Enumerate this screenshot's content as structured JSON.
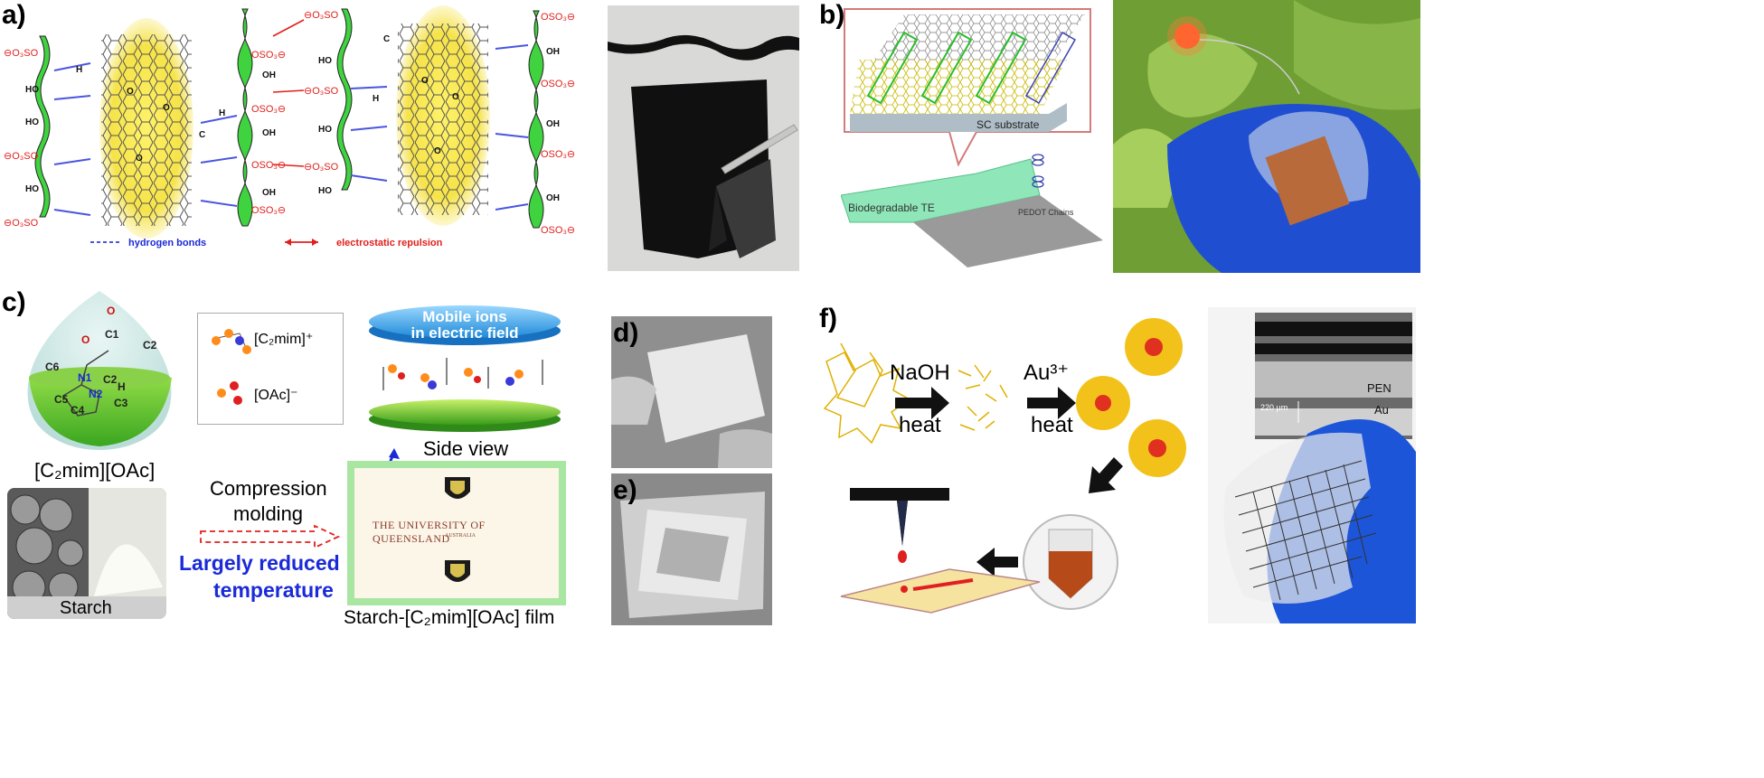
{
  "panel_labels": {
    "a": "a)",
    "b": "b)",
    "c": "c)",
    "d": "d)",
    "e": "e)",
    "f": "f)"
  },
  "panel_a": {
    "legend_hbond": "hydrogen bonds",
    "legend_repulsion": "electrostatic repulsion",
    "sulfonate": "⊖O₃SO",
    "sulfonate_r": "OSO₃⊖",
    "hydroxyl": "OH",
    "ho": "HO",
    "atom_o": "O",
    "atom_h": "H",
    "atom_c": "C"
  },
  "panel_b": {
    "substrate_label": "SC substrate",
    "film_label": "Biodegradable TE",
    "chain_label": "PEDOT Chains"
  },
  "panel_c": {
    "ionic_liquid": "[C₂mim][OAc]",
    "legend_cation": "[C₂mim]⁺",
    "legend_anion": "[OAc]⁻",
    "mobile_ions_line1": "Mobile ions",
    "mobile_ions_line2": "in electric field",
    "side_view": "Side view",
    "process_line1": "Compression",
    "process_line2": "molding",
    "benefit_line1": "Largely reduced",
    "benefit_line2": "temperature",
    "starch": "Starch",
    "film": "Starch-[C₂mim][OAc] film",
    "uq_text": "The University Of Queensland",
    "uq_sub": "AUSTRALIA",
    "atoms": [
      "O",
      "O",
      "C1",
      "C2",
      "C6",
      "N1",
      "C2",
      "N2",
      "H",
      "C5",
      "C4",
      "C3"
    ]
  },
  "panel_f": {
    "step1_top": "NaOH",
    "step1_bottom": "heat",
    "step2_top": "Au³⁺",
    "step2_bottom": "heat",
    "pen_label": "PEN",
    "au_label": "Au",
    "scale_label": "220 μm"
  },
  "colors": {
    "graphene_glow": "#f6e34a",
    "cellulose_green": "#3fd33f",
    "annotation_red": "#e0201c",
    "annotation_blue": "#1a2ad8",
    "glove_blue": "#1c55d8"
  }
}
